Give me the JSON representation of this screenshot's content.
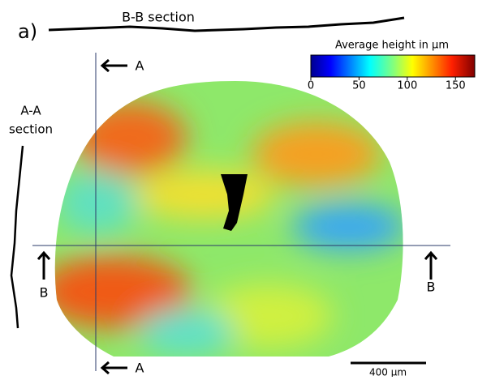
{
  "panel_label": "a)",
  "bb_section_label": "B-B section",
  "aa_section_label": [
    "A-A",
    "section"
  ],
  "markers": {
    "a_top": "A",
    "a_bottom": "A",
    "b_left": "B",
    "b_right": "B"
  },
  "colorbar": {
    "label": "Average height in µm",
    "lim": [
      0,
      170
    ],
    "ticks": [
      0,
      50,
      100,
      150
    ]
  },
  "scale_bar": "400 µm"
}
